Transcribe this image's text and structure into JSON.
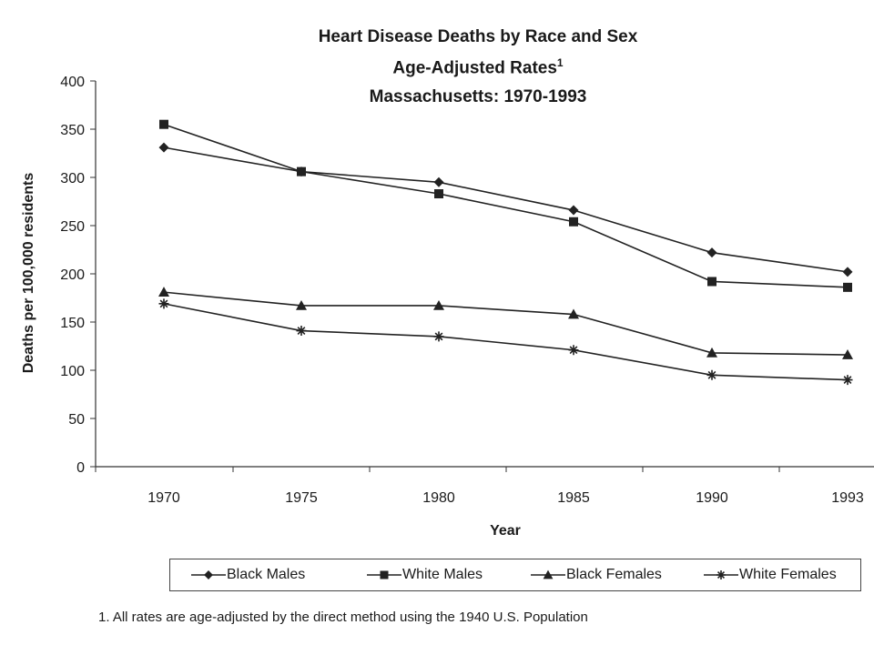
{
  "chart_data": {
    "type": "line",
    "title_lines": [
      "Heart Disease Deaths by Race and Sex",
      "Age-Adjusted Rates",
      "Massachusetts: 1970-1993"
    ],
    "title_superscript": "1",
    "xlabel": "Year",
    "ylabel": "Deaths per 100,000 residents",
    "x": [
      1970,
      1975,
      1980,
      1985,
      1990,
      1993
    ],
    "ylim": [
      0,
      400
    ],
    "yticks": [
      0,
      50,
      100,
      150,
      200,
      250,
      300,
      350,
      400
    ],
    "grid": false,
    "legend_placement": "bottom",
    "series": [
      {
        "name": "Black Males",
        "marker": "diamond",
        "values": [
          331,
          306,
          295,
          266,
          222,
          202
        ]
      },
      {
        "name": "White Males",
        "marker": "square",
        "values": [
          355,
          306,
          283,
          254,
          192,
          186
        ]
      },
      {
        "name": "Black Females",
        "marker": "triangle",
        "values": [
          181,
          167,
          167,
          158,
          118,
          116
        ]
      },
      {
        "name": "White Females",
        "marker": "star",
        "values": [
          169,
          141,
          135,
          121,
          95,
          90
        ]
      }
    ],
    "line_color": "#222222"
  },
  "footnote": "1. All rates are age-adjusted by the direct method using the 1940 U.S. Population"
}
